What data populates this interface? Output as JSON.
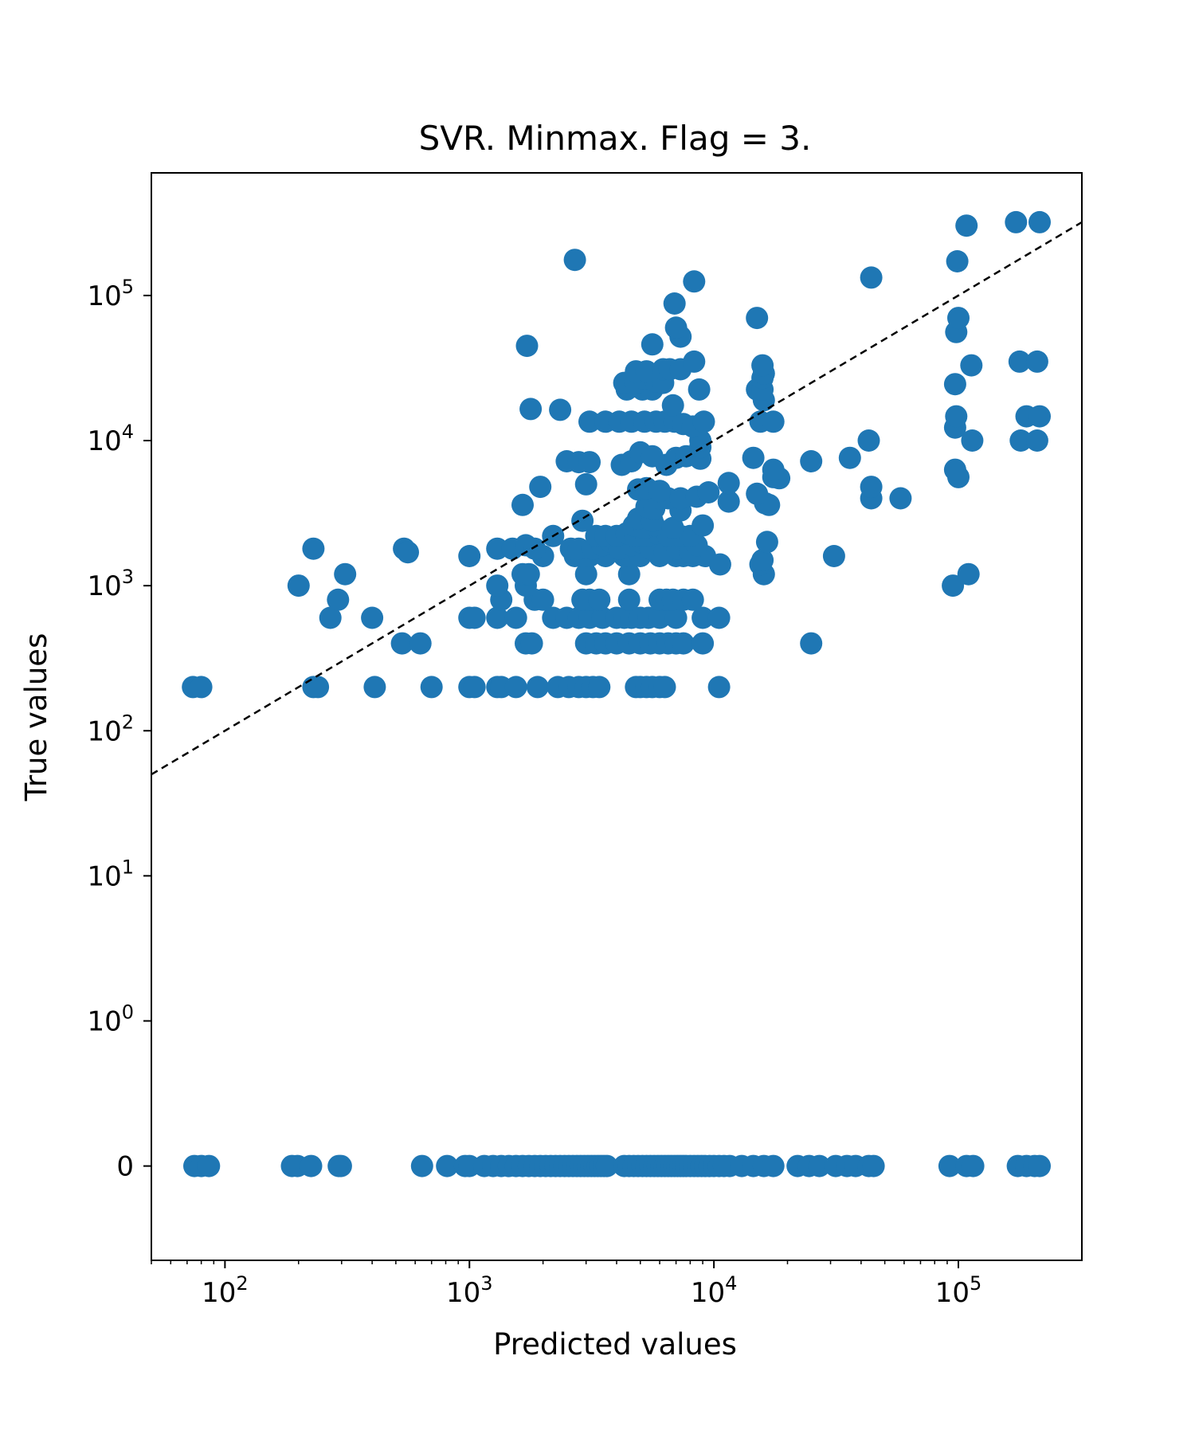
{
  "chart_data": {
    "type": "scatter",
    "title": "SVR. Minmax. Flag = 3.",
    "xlabel": "Predicted values",
    "ylabel": "True values",
    "x_scale": "log",
    "y_scale": "symlog",
    "x_range": [
      50,
      320000
    ],
    "y_range": [
      -0.65,
      700000
    ],
    "x_ticks": [
      {
        "value": 100,
        "base": "10",
        "exp": "2"
      },
      {
        "value": 1000,
        "base": "10",
        "exp": "3"
      },
      {
        "value": 10000,
        "base": "10",
        "exp": "4"
      },
      {
        "value": 100000,
        "base": "10",
        "exp": "5"
      }
    ],
    "y_ticks": [
      {
        "value": 0,
        "base": "0",
        "exp": ""
      },
      {
        "value": 1,
        "base": "10",
        "exp": "0"
      },
      {
        "value": 10,
        "base": "10",
        "exp": "1"
      },
      {
        "value": 100,
        "base": "10",
        "exp": "2"
      },
      {
        "value": 1000,
        "base": "10",
        "exp": "3"
      },
      {
        "value": 10000,
        "base": "10",
        "exp": "4"
      },
      {
        "value": 100000,
        "base": "10",
        "exp": "5"
      }
    ],
    "reference_line": {
      "type": "identity",
      "style": "dashed",
      "color": "#000000"
    },
    "grid": false,
    "marker_color": "#1f77b4",
    "points": [
      [
        74,
        200
      ],
      [
        80,
        200
      ],
      [
        230,
        200
      ],
      [
        240,
        200
      ],
      [
        410,
        200
      ],
      [
        700,
        200
      ],
      [
        1000,
        200
      ],
      [
        1050,
        200
      ],
      [
        1300,
        200
      ],
      [
        1350,
        200
      ],
      [
        1550,
        200
      ],
      [
        1900,
        200
      ],
      [
        2300,
        200
      ],
      [
        2550,
        200
      ],
      [
        2800,
        200
      ],
      [
        3000,
        200
      ],
      [
        3200,
        200
      ],
      [
        3400,
        200
      ],
      [
        4800,
        200
      ],
      [
        5000,
        200
      ],
      [
        5300,
        200
      ],
      [
        5600,
        200
      ],
      [
        6000,
        200
      ],
      [
        6300,
        200
      ],
      [
        10500,
        200
      ],
      [
        530,
        400
      ],
      [
        630,
        400
      ],
      [
        1700,
        400
      ],
      [
        1800,
        400
      ],
      [
        3000,
        400
      ],
      [
        3300,
        400
      ],
      [
        3600,
        400
      ],
      [
        4000,
        400
      ],
      [
        4500,
        400
      ],
      [
        5000,
        400
      ],
      [
        5500,
        400
      ],
      [
        6000,
        400
      ],
      [
        6500,
        400
      ],
      [
        7000,
        400
      ],
      [
        7500,
        400
      ],
      [
        9000,
        400
      ],
      [
        25000,
        400
      ],
      [
        270,
        600
      ],
      [
        400,
        600
      ],
      [
        1000,
        600
      ],
      [
        1050,
        600
      ],
      [
        1300,
        600
      ],
      [
        1550,
        600
      ],
      [
        2200,
        600
      ],
      [
        2500,
        600
      ],
      [
        2800,
        600
      ],
      [
        3100,
        600
      ],
      [
        3500,
        600
      ],
      [
        4000,
        600
      ],
      [
        4300,
        600
      ],
      [
        4600,
        600
      ],
      [
        5000,
        600
      ],
      [
        5400,
        600
      ],
      [
        6000,
        600
      ],
      [
        7000,
        600
      ],
      [
        9000,
        600
      ],
      [
        10500,
        600
      ],
      [
        290,
        800
      ],
      [
        1350,
        800
      ],
      [
        1850,
        800
      ],
      [
        2000,
        800
      ],
      [
        2900,
        800
      ],
      [
        3100,
        800
      ],
      [
        3400,
        800
      ],
      [
        4500,
        800
      ],
      [
        6000,
        800
      ],
      [
        6400,
        800
      ],
      [
        6800,
        800
      ],
      [
        7500,
        800
      ],
      [
        8200,
        800
      ],
      [
        200,
        1000
      ],
      [
        1300,
        1000
      ],
      [
        1700,
        1000
      ],
      [
        95000,
        1000
      ],
      [
        310,
        1200
      ],
      [
        1650,
        1200
      ],
      [
        1750,
        1200
      ],
      [
        3000,
        1200
      ],
      [
        4500,
        1200
      ],
      [
        16000,
        1200
      ],
      [
        110000,
        1200
      ],
      [
        1000,
        1600
      ],
      [
        2000,
        1600
      ],
      [
        2700,
        1600
      ],
      [
        3100,
        1600
      ],
      [
        3600,
        1600
      ],
      [
        4300,
        1600
      ],
      [
        5000,
        1600
      ],
      [
        6000,
        1600
      ],
      [
        7000,
        1600
      ],
      [
        7500,
        1600
      ],
      [
        8200,
        1600
      ],
      [
        9200,
        1600
      ],
      [
        31000,
        1600
      ],
      [
        230,
        1800
      ],
      [
        540,
        1800
      ],
      [
        560,
        1700
      ],
      [
        1300,
        1800
      ],
      [
        1500,
        1800
      ],
      [
        1700,
        1900
      ],
      [
        1850,
        1800
      ],
      [
        2600,
        1800
      ],
      [
        2800,
        1800
      ],
      [
        3200,
        1800
      ],
      [
        3500,
        1900
      ],
      [
        3800,
        2000
      ],
      [
        4100,
        1800
      ],
      [
        4600,
        1900
      ],
      [
        5000,
        2000
      ],
      [
        5500,
        1800
      ],
      [
        6300,
        1700
      ],
      [
        7100,
        1800
      ],
      [
        8000,
        1700
      ],
      [
        8500,
        1900
      ],
      [
        10600,
        1400
      ],
      [
        15500,
        1400
      ],
      [
        15800,
        1500
      ],
      [
        2200,
        2200
      ],
      [
        3300,
        2200
      ],
      [
        3600,
        2200
      ],
      [
        4000,
        2200
      ],
      [
        4400,
        2300
      ],
      [
        4800,
        2200
      ],
      [
        5300,
        2200
      ],
      [
        5800,
        2300
      ],
      [
        6500,
        2200
      ],
      [
        7300,
        2200
      ],
      [
        8000,
        2200
      ],
      [
        4700,
        2600
      ],
      [
        5200,
        2500
      ],
      [
        5700,
        2600
      ],
      [
        6800,
        2500
      ],
      [
        9000,
        2600
      ],
      [
        16500,
        2000
      ],
      [
        2900,
        2800
      ],
      [
        4900,
        2900
      ],
      [
        5600,
        2800
      ],
      [
        1650,
        3600
      ],
      [
        5300,
        3500
      ],
      [
        5700,
        3400
      ],
      [
        7300,
        3300
      ],
      [
        16200,
        3700
      ],
      [
        16800,
        3600
      ],
      [
        6000,
        4000
      ],
      [
        6500,
        4000
      ],
      [
        7300,
        4000
      ],
      [
        8500,
        4100
      ],
      [
        9500,
        4400
      ],
      [
        11500,
        3800
      ],
      [
        44000,
        4000
      ],
      [
        58000,
        4000
      ],
      [
        1950,
        4800
      ],
      [
        3000,
        5000
      ],
      [
        4900,
        4600
      ],
      [
        5300,
        4700
      ],
      [
        6000,
        4500
      ],
      [
        11500,
        5100
      ],
      [
        15000,
        4300
      ],
      [
        17500,
        5600
      ],
      [
        18500,
        5500
      ],
      [
        44000,
        4800
      ],
      [
        100000,
        5600
      ],
      [
        2500,
        7200
      ],
      [
        2800,
        7100
      ],
      [
        3100,
        7100
      ],
      [
        4200,
        6800
      ],
      [
        4600,
        7200
      ],
      [
        5000,
        8300
      ],
      [
        5600,
        7800
      ],
      [
        6400,
        6800
      ],
      [
        7000,
        7600
      ],
      [
        7700,
        7800
      ],
      [
        8800,
        7500
      ],
      [
        14500,
        7600
      ],
      [
        17500,
        6300
      ],
      [
        25000,
        7200
      ],
      [
        36000,
        7600
      ],
      [
        97000,
        6300
      ],
      [
        8800,
        9000
      ],
      [
        8800,
        10000
      ],
      [
        43000,
        10000
      ],
      [
        97000,
        12300
      ],
      [
        114000,
        10000
      ],
      [
        180000,
        10000
      ],
      [
        210000,
        10000
      ],
      [
        3100,
        13500
      ],
      [
        3600,
        13500
      ],
      [
        4100,
        13500
      ],
      [
        4600,
        13500
      ],
      [
        5200,
        13500
      ],
      [
        5800,
        13500
      ],
      [
        6300,
        13500
      ],
      [
        6900,
        13500
      ],
      [
        7500,
        13000
      ],
      [
        8200,
        12500
      ],
      [
        9100,
        13500
      ],
      [
        15500,
        13500
      ],
      [
        17500,
        13500
      ],
      [
        98000,
        14700
      ],
      [
        190000,
        14700
      ],
      [
        215000,
        14700
      ],
      [
        1780,
        16500
      ],
      [
        2350,
        16300
      ],
      [
        6800,
        17500
      ],
      [
        16000,
        19000
      ],
      [
        4400,
        22500
      ],
      [
        5100,
        22500
      ],
      [
        5600,
        22500
      ],
      [
        8700,
        22500
      ],
      [
        15000,
        22500
      ],
      [
        15800,
        22500
      ],
      [
        97000,
        24500
      ],
      [
        4300,
        25000
      ],
      [
        4800,
        25000
      ],
      [
        5200,
        26500
      ],
      [
        5800,
        25500
      ],
      [
        6200,
        25000
      ],
      [
        15800,
        27000
      ],
      [
        16000,
        29000
      ],
      [
        4800,
        30000
      ],
      [
        5300,
        30000
      ],
      [
        6200,
        31000
      ],
      [
        6600,
        31000
      ],
      [
        7300,
        31000
      ],
      [
        8300,
        35000
      ],
      [
        15800,
        33000
      ],
      [
        113000,
        33000
      ],
      [
        178000,
        35000
      ],
      [
        210000,
        35000
      ],
      [
        1720,
        45000
      ],
      [
        5600,
        46000
      ],
      [
        7300,
        52000
      ],
      [
        7000,
        60000
      ],
      [
        6900,
        88000
      ],
      [
        15000,
        70000
      ],
      [
        98000,
        56000
      ],
      [
        100000,
        70000
      ],
      [
        8300,
        125000
      ],
      [
        44000,
        133000
      ],
      [
        2700,
        176000
      ],
      [
        99000,
        172000
      ],
      [
        108000,
        303000
      ],
      [
        172000,
        320000
      ],
      [
        215000,
        320000
      ],
      [
        75,
        0
      ],
      [
        80,
        0
      ],
      [
        86,
        0
      ],
      [
        188,
        0
      ],
      [
        198,
        0
      ],
      [
        225,
        0
      ],
      [
        292,
        0
      ],
      [
        298,
        0
      ],
      [
        640,
        0
      ],
      [
        810,
        0
      ],
      [
        960,
        0
      ],
      [
        1000,
        0
      ],
      [
        1150,
        0
      ],
      [
        1250,
        0
      ],
      [
        1350,
        0
      ],
      [
        1450,
        0
      ],
      [
        1550,
        0
      ],
      [
        1650,
        0
      ],
      [
        1750,
        0
      ],
      [
        1850,
        0
      ],
      [
        1950,
        0
      ],
      [
        2050,
        0
      ],
      [
        2150,
        0
      ],
      [
        2250,
        0
      ],
      [
        2350,
        0
      ],
      [
        2450,
        0
      ],
      [
        2550,
        0
      ],
      [
        2650,
        0
      ],
      [
        2750,
        0
      ],
      [
        2850,
        0
      ],
      [
        2950,
        0
      ],
      [
        3050,
        0
      ],
      [
        3150,
        0
      ],
      [
        3250,
        0
      ],
      [
        3350,
        0
      ],
      [
        3450,
        0
      ],
      [
        3550,
        0
      ],
      [
        3650,
        0
      ],
      [
        4300,
        0
      ],
      [
        4500,
        0
      ],
      [
        4700,
        0
      ],
      [
        4900,
        0
      ],
      [
        5100,
        0
      ],
      [
        5300,
        0
      ],
      [
        5500,
        0
      ],
      [
        5700,
        0
      ],
      [
        5900,
        0
      ],
      [
        6100,
        0
      ],
      [
        6300,
        0
      ],
      [
        6500,
        0
      ],
      [
        6700,
        0
      ],
      [
        6900,
        0
      ],
      [
        7100,
        0
      ],
      [
        7300,
        0
      ],
      [
        7500,
        0
      ],
      [
        7700,
        0
      ],
      [
        8000,
        0
      ],
      [
        8300,
        0
      ],
      [
        8600,
        0
      ],
      [
        8900,
        0
      ],
      [
        9200,
        0
      ],
      [
        9600,
        0
      ],
      [
        10000,
        0
      ],
      [
        10500,
        0
      ],
      [
        11000,
        0
      ],
      [
        11600,
        0
      ],
      [
        13000,
        0
      ],
      [
        14500,
        0
      ],
      [
        16000,
        0
      ],
      [
        17500,
        0
      ],
      [
        22000,
        0
      ],
      [
        24500,
        0
      ],
      [
        27000,
        0
      ],
      [
        31500,
        0
      ],
      [
        35000,
        0
      ],
      [
        38000,
        0
      ],
      [
        43000,
        0
      ],
      [
        45000,
        0
      ],
      [
        92000,
        0
      ],
      [
        108000,
        0
      ],
      [
        115000,
        0
      ],
      [
        175000,
        0
      ],
      [
        190000,
        0
      ],
      [
        205000,
        0
      ],
      [
        215000,
        0
      ]
    ]
  }
}
